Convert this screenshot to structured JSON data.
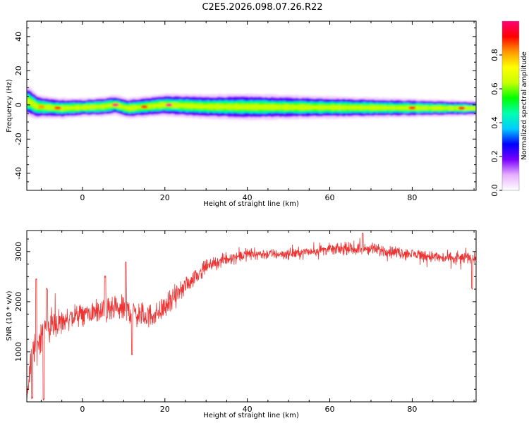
{
  "title": "C2E5.2026.098.07.26.R22",
  "chart_data": [
    {
      "type": "heatmap",
      "xlabel": "Height of straight line (km)",
      "ylabel": "Frequency (Hz)",
      "xlim": [
        -13.5,
        95.5
      ],
      "ylim": [
        -50,
        49
      ],
      "xticks": [
        0,
        20,
        40,
        60,
        80
      ],
      "yticks": [
        40,
        20,
        0,
        -20,
        -40
      ],
      "band": {
        "center_hz": [
          {
            "x": -13,
            "y": 2
          },
          {
            "x": -11,
            "y": -1
          },
          {
            "x": -5,
            "y": -2
          },
          {
            "x": 5,
            "y": -1
          },
          {
            "x": 8,
            "y": 0
          },
          {
            "x": 11,
            "y": -2
          },
          {
            "x": 20,
            "y": 0
          },
          {
            "x": 30,
            "y": -1
          },
          {
            "x": 60,
            "y": -1.5
          },
          {
            "x": 95,
            "y": -2
          }
        ],
        "half_width_hz": [
          {
            "x": -13,
            "y": 4
          },
          {
            "x": -10,
            "y": 3
          },
          {
            "x": 0,
            "y": 2.5
          },
          {
            "x": 20,
            "y": 3
          },
          {
            "x": 40,
            "y": 3.5
          },
          {
            "x": 60,
            "y": 3
          },
          {
            "x": 80,
            "y": 2.5
          },
          {
            "x": 95,
            "y": 2
          }
        ],
        "peaks": [
          {
            "x": -10,
            "amplitude": 0.85
          },
          {
            "x": -6,
            "amplitude": 0.9
          },
          {
            "x": 8,
            "amplitude": 1.0
          },
          {
            "x": 15,
            "amplitude": 0.95
          },
          {
            "x": 21,
            "amplitude": 1.0
          },
          {
            "x": 80,
            "amplitude": 0.9
          },
          {
            "x": 92,
            "amplitude": 0.95
          }
        ]
      },
      "colorbar": {
        "label": "Normalized spectral amplitude",
        "range": [
          0,
          1
        ],
        "ticks": [
          "0.0",
          "0.2",
          "0.4",
          "0.6",
          "0.8"
        ],
        "colormap": "hsv-rainbow",
        "colors": [
          "#ffffff",
          "#e8b0ff",
          "#7a00ff",
          "#0000ff",
          "#00ccff",
          "#00ffb0",
          "#00ff00",
          "#c8ff00",
          "#ffff00",
          "#ff9900",
          "#ff0000",
          "#ff0077"
        ]
      }
    },
    {
      "type": "line",
      "xlabel": "Height of straight line (km)",
      "ylabel": "SNR (10 * v/v)",
      "xlim": [
        -13.5,
        95.5
      ],
      "ylim": [
        0,
        3420
      ],
      "xticks": [
        0,
        20,
        40,
        60,
        80
      ],
      "yticks": [
        1000,
        2000,
        3000
      ],
      "series": [
        {
          "name": "SNR",
          "color": "#ee3333",
          "trend": [
            {
              "x": -13.5,
              "y": 200
            },
            {
              "x": -12,
              "y": 1000
            },
            {
              "x": -10,
              "y": 1350
            },
            {
              "x": -8,
              "y": 1500
            },
            {
              "x": -4,
              "y": 1650
            },
            {
              "x": 0,
              "y": 1750
            },
            {
              "x": 5,
              "y": 1800
            },
            {
              "x": 10,
              "y": 1850
            },
            {
              "x": 15,
              "y": 1700
            },
            {
              "x": 18,
              "y": 1750
            },
            {
              "x": 22,
              "y": 2050
            },
            {
              "x": 26,
              "y": 2400
            },
            {
              "x": 30,
              "y": 2700
            },
            {
              "x": 35,
              "y": 2850
            },
            {
              "x": 40,
              "y": 2950
            },
            {
              "x": 50,
              "y": 2950
            },
            {
              "x": 60,
              "y": 3050
            },
            {
              "x": 70,
              "y": 3050
            },
            {
              "x": 80,
              "y": 2950
            },
            {
              "x": 90,
              "y": 2850
            },
            {
              "x": 95.5,
              "y": 2900
            }
          ],
          "noise_amplitude": [
            {
              "x": -13.5,
              "y": 700
            },
            {
              "x": -8,
              "y": 600
            },
            {
              "x": 0,
              "y": 400
            },
            {
              "x": 10,
              "y": 500
            },
            {
              "x": 20,
              "y": 450
            },
            {
              "x": 30,
              "y": 250
            },
            {
              "x": 50,
              "y": 200
            },
            {
              "x": 70,
              "y": 220
            },
            {
              "x": 95.5,
              "y": 250
            }
          ],
          "spikes": [
            {
              "x": -12.2,
              "y": 80
            },
            {
              "x": -11.2,
              "y": 2450
            },
            {
              "x": -9.4,
              "y": 50
            },
            {
              "x": -8.6,
              "y": 2250
            },
            {
              "x": 5.5,
              "y": 2500
            },
            {
              "x": 10.5,
              "y": 2780
            },
            {
              "x": 12,
              "y": 950
            },
            {
              "x": 68,
              "y": 3370
            },
            {
              "x": 94.5,
              "y": 2250
            }
          ],
          "max_value": 3370,
          "min_value": 30
        }
      ]
    }
  ]
}
